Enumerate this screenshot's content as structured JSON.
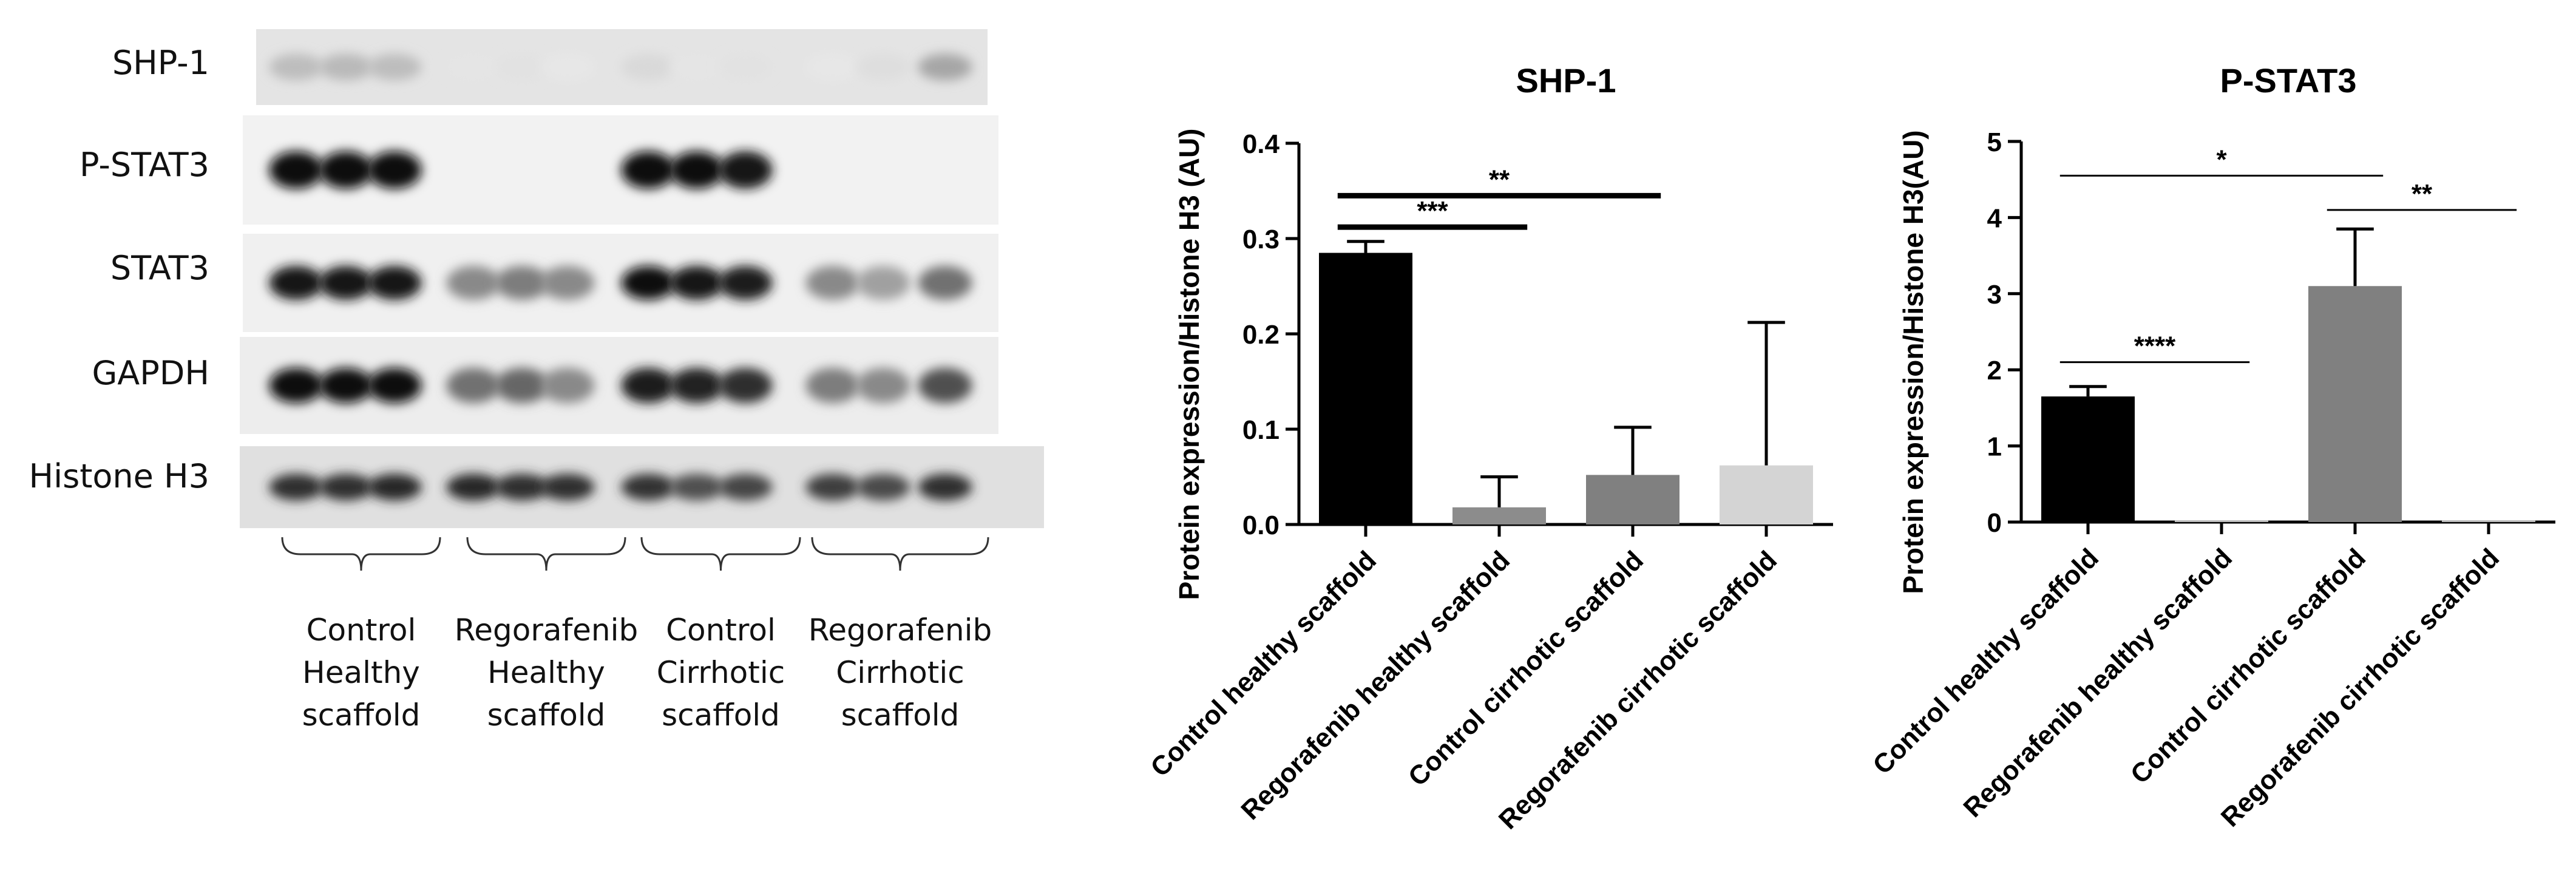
{
  "blot": {
    "rows": [
      {
        "label": "SHP-1",
        "intensities": [
          0.22,
          0.24,
          0.22,
          0.05,
          0.06,
          0.04,
          0.1,
          0.05,
          0.06,
          0.04,
          0.08,
          0.32
        ]
      },
      {
        "label": "P-STAT3",
        "intensities": [
          0.97,
          0.97,
          0.97,
          0,
          0,
          0,
          0.97,
          0.97,
          0.95,
          0,
          0,
          0
        ]
      },
      {
        "label": "STAT3",
        "intensities": [
          0.95,
          0.95,
          0.95,
          0.45,
          0.5,
          0.45,
          0.97,
          0.95,
          0.92,
          0.45,
          0.35,
          0.55
        ]
      },
      {
        "label": "GAPDH",
        "intensities": [
          0.97,
          0.97,
          0.97,
          0.55,
          0.6,
          0.45,
          0.92,
          0.9,
          0.85,
          0.5,
          0.45,
          0.7
        ]
      },
      {
        "label": "Histone H3",
        "intensities": [
          0.85,
          0.85,
          0.88,
          0.88,
          0.85,
          0.85,
          0.82,
          0.7,
          0.75,
          0.78,
          0.72,
          0.85
        ]
      }
    ],
    "groups": [
      {
        "lines": [
          "Control",
          "Healthy",
          "scaffold"
        ]
      },
      {
        "lines": [
          "Regorafenib",
          "Healthy",
          "scaffold"
        ]
      },
      {
        "lines": [
          "Control",
          "Cirrhotic",
          "scaffold"
        ]
      },
      {
        "lines": [
          "Regorafenib",
          "Cirrhotic",
          "scaffold"
        ]
      }
    ]
  },
  "chart_data": [
    {
      "type": "bar",
      "title": "SHP-1",
      "ylabel": "Protein expression/Histone H3 (AU)",
      "xlabel": "",
      "categories": [
        "Control healthy scaffold",
        "Regorafenib healthy scaffold",
        "Control cirrhotic scaffold",
        "Regorafenib cirrhotic scaffold"
      ],
      "values": [
        0.285,
        0.018,
        0.052,
        0.062
      ],
      "errors": [
        0.012,
        0.032,
        0.05,
        0.15
      ],
      "colors": [
        "#000000",
        "#8c8c8c",
        "#808080",
        "#d4d4d4"
      ],
      "ylim": [
        0,
        0.4
      ],
      "yticks": [
        "0.0",
        "0.1",
        "0.2",
        "0.3",
        "0.4"
      ],
      "significance": [
        {
          "from": 0,
          "to": 1,
          "y": 0.312,
          "label": "***"
        },
        {
          "from": 0,
          "to": 2,
          "y": 0.345,
          "label": "**"
        }
      ]
    },
    {
      "type": "bar",
      "title": "P-STAT3",
      "ylabel": "Protein expression/Histone H3(AU)",
      "xlabel": "",
      "categories": [
        "Control healthy scaffold",
        "Regorafenib healthy scaffold",
        "Control cirrhotic scaffold",
        "Regorafenib cirrhotic scaffold"
      ],
      "values": [
        1.65,
        0.02,
        3.1,
        0.02
      ],
      "errors": [
        0.13,
        0,
        0.75,
        0
      ],
      "colors": [
        "#000000",
        "#bdbdbd",
        "#808080",
        "#bdbdbd"
      ],
      "ylim": [
        0,
        5
      ],
      "yticks": [
        "0",
        "1",
        "2",
        "3",
        "4",
        "5"
      ],
      "significance": [
        {
          "from": 0,
          "to": 1,
          "y": 2.1,
          "label": "****"
        },
        {
          "from": 0,
          "to": 2,
          "y": 4.55,
          "label": "*"
        },
        {
          "from": 2,
          "to": 3,
          "y": 4.1,
          "label": "**"
        }
      ]
    }
  ]
}
